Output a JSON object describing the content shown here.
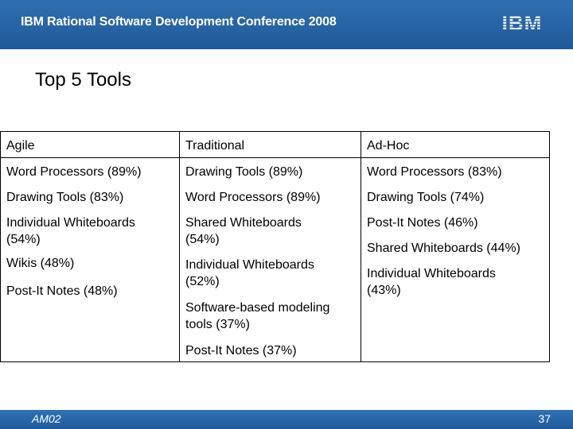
{
  "header": {
    "title": "IBM Rational Software Development Conference 2008",
    "logo_text": "IBM",
    "bar_color": "#1f5a9a"
  },
  "slide": {
    "title": "Top 5 Tools"
  },
  "table": {
    "columns": [
      "Agile",
      "Traditional",
      "Ad-Hoc"
    ],
    "agile": [
      "Word Processors (89%)",
      "Drawing Tools (83%)",
      "Individual Whiteboards (54%)",
      "Wikis (48%)",
      "Post-It Notes (48%)"
    ],
    "traditional": [
      "Drawing Tools (89%)",
      "Word Processors (89%)",
      "Shared Whiteboards (54%)",
      "Individual Whiteboards (52%)",
      "Software-based modeling tools (37%)",
      "Post-It Notes (37%)"
    ],
    "adhoc": [
      "Word Processors (83%)",
      "Drawing Tools (74%)",
      "Post-It Notes (46%)",
      "Shared Whiteboards (44%)",
      "Individual Whiteboards (43%)"
    ]
  },
  "footer": {
    "session_code": "AM02",
    "page_number": "37"
  }
}
